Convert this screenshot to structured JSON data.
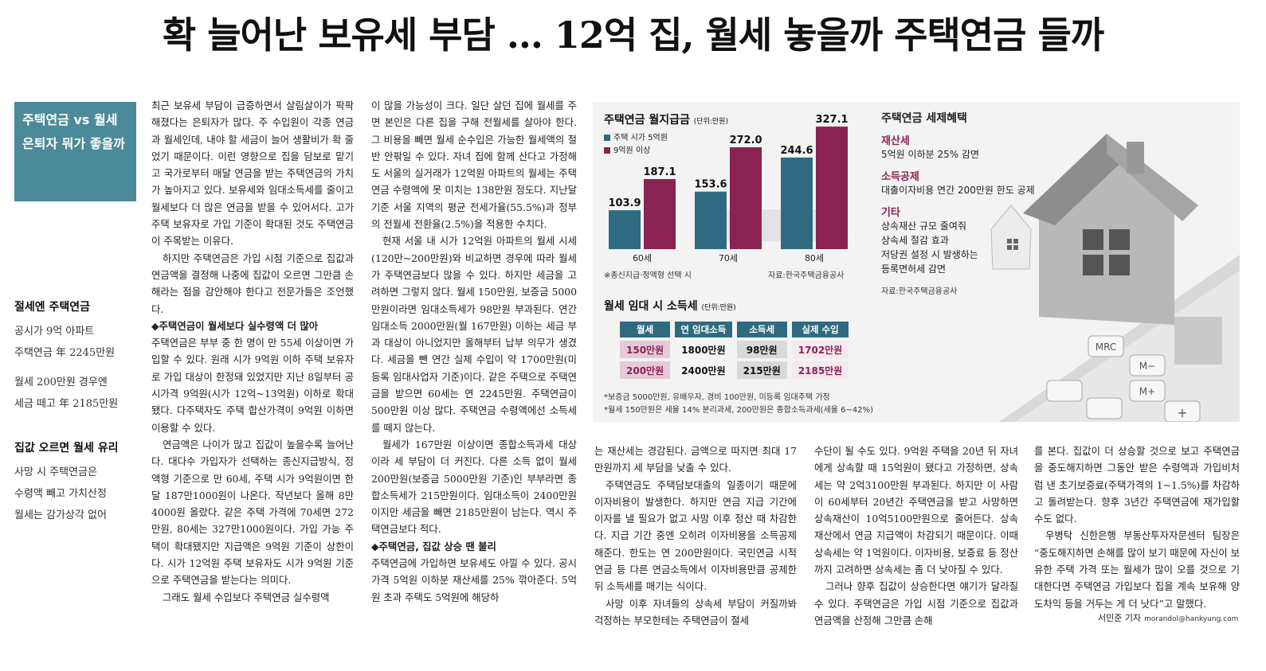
{
  "headline": "확 늘어난 보유세 부담 … 12억 집, 월세 놓을까 주택연금 들까",
  "sidebox": {
    "line1": "주택연금 vs 월세",
    "line2": "은퇴자 뭐가 좋을까"
  },
  "side1": {
    "head": "절세엔 주택연금",
    "lines": [
      "공시가 9억 아파트",
      "주택연금 年 2245만원",
      "",
      "월세 200만원 경우엔",
      "세금 떼고 年 2185만원"
    ]
  },
  "side2": {
    "head": "집값 오르면 월세 유리",
    "lines": [
      "사망 시 주택연금은",
      "수령액 빼고 가치산정",
      "월세는 감가상각 없어"
    ]
  },
  "col1": [
    {
      "c": "p",
      "t": "최근 보유세 부담이 급증하면서 살림살이가 팍팍해졌다는 은퇴자가 많다. 주 수입원이 각종 연금과 월세인데, 내야 할 세금이 늘어 생활비가 확 줄었기 때문이다. 이런 영향으로 집을 담보로 맡기고 국가로부터 매달 연금을 받는 주택연금의 가치가 높아지고 있다. 보유세와 임대소득세를 줄이고 월세보다 더 많은 연금을 받을 수 있어서다. 고가 주택 보유자로 가입 기준이 확대된 것도 주택연금이 주목받는 이유다."
    },
    {
      "c": "ind",
      "t": "하지만 주택연금은 가입 시점 기준으로 집값과 연금액을 결정해 나중에 집값이 오르면 그만큼 손해라는 점을 감안해야 한다고 전문가들은 조언했다."
    },
    {
      "c": "sub",
      "t": "◆주택연금이 월세보다 실수령액 더 많아"
    },
    {
      "c": "p",
      "t": "주택연금은 부부 중 한 명이 만 55세 이상이면 가입할 수 있다. 원래 시가 9억원 이하 주택 보유자로 가입 대상이 한정돼 있었지만 지난 8일부터 공시가격 9억원(시가 12억~13억원) 이하로 확대됐다. 다주택자도 주택 합산가격이 9억원 이하면 이용할 수 있다."
    },
    {
      "c": "ind",
      "t": "연금액은 나이가 많고 집값이 높을수록 늘어난다. 대다수 가입자가 선택하는 종신지급방식, 정액형 기준으로 만 60세, 주택 시가 9억원이면 한 달 187만1000원이 나온다. 작년보다 올해 8만4000원 올랐다. 같은 주택 가격에 70세면 272만원, 80세는 327만1000원이다. 가입 가능 주택이 확대됐지만 지급액은 9억원 기준이 상한이다. 시가 12억원 주택 보유자도 시가 9억원 기준으로 주택연금을 받는다는 의미다."
    },
    {
      "c": "ind",
      "t": "그래도 월세 수입보다 주택연금 실수령액"
    }
  ],
  "col2": [
    {
      "c": "p",
      "t": "이 많을 가능성이 크다. 일단 살던 집에 월세를 주면 본인은 다른 집을 구해 전월세를 살아야 한다. 그 비용을 빼면 월세 순수입은 가능한 월세액의 절반 안팎일 수 있다. 자녀 집에 함께 산다고 가정해도 서울의 실거래가 12억원 아파트의 월세는 주택연금 수령액에 못 미치는 138만원 정도다. 지난달 기준 서울 지역의 평균 전세가율(55.5%)과 정부의 전월세 전환율(2.5%)을 적용한 수치다."
    },
    {
      "c": "ind",
      "t": "현재 서울 내 시가 12억원 아파트의 월세 시세(120만~200만원)와 비교하면 경우에 따라 월세가 주택연금보다 많을 수 있다. 하지만 세금을 고려하면 그렇지 않다. 월세 150만원, 보증금 5000만원이라면 임대소득세가 98만원 부과된다. 연간 임대소득 2000만원(월 167만원) 이하는 세금 부과 대상이 아니었지만 올해부터 납부 의무가 생겼다. 세금을 뺀 연간 실제 수입이 약 1700만원(미등록 임대사업자 기준)이다. 같은 주택으로 주택연금을 받으면 60세는 연 2245만원. 주택연금이 500만원 이상 많다. 주택연금 수령액에선 소득세를 떼지 않는다."
    },
    {
      "c": "ind",
      "t": "월세가 167만원 이상이면 종합소득과세 대상이라 세 부담이 더 커진다. 다른 소득 없이 월세 200만원(보증금 5000만원 기준)인 부부라면 종합소득세가 215만원이다. 임대소득이 2400만원이지만 세금을 빼면 2185만원이 남는다. 역시 주택연금보다 적다."
    },
    {
      "c": "sub",
      "t": "◆주택연금, 집값 상승 땐 불리"
    },
    {
      "c": "p",
      "t": "주택연금에 가입하면 보유세도 아낄 수 있다. 공시가격 5억원 이하분 재산세를 25% 깎아준다. 5억원 초과 주택도 5억원에 해당하"
    }
  ],
  "col3": [
    {
      "c": "p",
      "t": "는 재산세는 경감된다. 금액으로 따지면 최대 17만원까지 세 부담을 낮출 수 있다."
    },
    {
      "c": "ind",
      "t": "주택연금도 주택담보대출의 일종이기 때문에 이자비용이 발생한다. 하지만 연금 지급 기간에 이자를 낼 필요가 없고 사망 이후 정산 때 차감한다. 지급 기간 중엔 오히려 이자비용을 소득공제해준다. 한도는 연 200만원이다. 국민연금 시적연금 등 다른 연금소득에서 이자비용만큼 공제한 뒤 소득세를 매기는 식이다."
    },
    {
      "c": "ind",
      "t": "사망 이후 자녀들의 상속세 부담이 커질까봐 걱정하는 부모한테는 주택연금이 절세"
    }
  ],
  "col4": [
    {
      "c": "p",
      "t": "수단이 될 수도 있다. 9억원 주택을 20년 뒤 자녀에게 상속할 때 15억원이 됐다고 가정하면, 상속세는 약 2억3100만원 부과된다. 하지만 이 사람이 60세부터 20년간 주택연금을 받고 사망하면 상속재산이 10억5100만원으로 줄어든다. 상속재산에서 연금 지급액이 차감되기 때문이다. 이때 상속세는 약 1억원이다. 이자비용, 보증료 등 정산까지 고려하면 상속세는 좀 더 낮아질 수 있다."
    },
    {
      "c": "ind",
      "t": "그러나 향후 집값이 상승한다면 얘기가 달라질 수 있다. 주택연금은 가입 시점 기준으로 집값과 연금액을 산정해 그만큼 손해"
    }
  ],
  "col5": [
    {
      "c": "p",
      "t": "를 본다. 집값이 더 상승할 것으로 보고 주택연금을 중도해지하면 그동안 받은 수령액과 가입비처럼 낸 초기보증료(주택가격의 1~1.5%)를 차감하고 돌려받는다. 향후 3년간 주택연금에 재가입할 수도 없다."
    },
    {
      "c": "ind",
      "t": "우병탁 신한은행 부동산투자자문센터 팀장은 “중도해지하면 손해를 많이 보기 때문에 자신이 보유한 주택 가격 또는 월세가 많이 오를 것으로 기대한다면 주택연금 가입보다 집을 계속 보유해 양도차익 등을 거두는 게 더 낫다”고 말했다."
    }
  ],
  "byline": {
    "name": "서민준 기자",
    "email": "morandol@hankyung.com"
  },
  "graphic": {
    "chart_title": "주택연금 월지급금",
    "chart_unit": "(단위:만원)",
    "chart_note": "※종신지급·정액형 선택 시",
    "chart_source": "자료:한국주택금융공사",
    "colors": {
      "teal": "#2f6b80",
      "plum": "#8b2352"
    },
    "table_title": "월세 임대 시 소득세",
    "table_unit": "(단위:만원)",
    "table_headers": [
      "월세",
      "연 임대소득",
      "소득세",
      "실제 수입"
    ],
    "table_rows": [
      [
        "150만원",
        "1800만원",
        "98만원",
        "1702만원"
      ],
      [
        "200만원",
        "2400만원",
        "215만원",
        "2185만원"
      ]
    ],
    "table_notes": [
      "*보증금 5000만원, 유배우자, 경비 100만원, 미등록 임대주택 가정",
      "*월세 150만원은 세율 14% 분리과세, 200만원은 종합소득과세(세율 6~42%)"
    ],
    "tax_title": "주택연금 세제혜택",
    "tax_items": [
      {
        "head": "재산세",
        "lines": [
          "5억원 이하분 25% 감면"
        ]
      },
      {
        "head": "소득공제",
        "lines": [
          "대출이자비용 연간 200만원 한도 공제"
        ]
      },
      {
        "head": "기타",
        "lines": [
          "상속재산 규모 줄여줘",
          "상속세 절감 효과",
          "저당권 설정 시 발생하는",
          "등록면허세 감면"
        ]
      }
    ],
    "tax_source": "자료:한국주택금융공사",
    "calc_keys": [
      "MRC",
      "M−",
      "M+",
      "+"
    ]
  },
  "chart_data": {
    "type": "bar",
    "title": "주택연금 월지급금",
    "categories": [
      "60세",
      "70세",
      "80세"
    ],
    "series": [
      {
        "name": "주택 시가 5억원",
        "values": [
          103.9,
          153.6,
          244.6
        ]
      },
      {
        "name": "9억원 이상",
        "values": [
          187.1,
          272.0,
          327.1
        ]
      }
    ],
    "value_labels": [
      [
        "103.9",
        "153.6",
        "244.6"
      ],
      [
        "187.1",
        "272.0",
        "327.1"
      ]
    ],
    "ylim": [
      0,
      340
    ],
    "legend": "top-left"
  }
}
